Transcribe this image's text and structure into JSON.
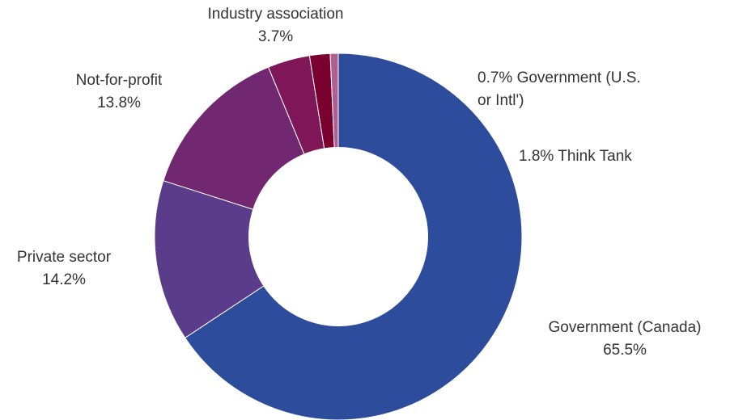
{
  "chart_data": {
    "type": "pie",
    "hole": true,
    "slices": [
      {
        "label": "Government (Canada)",
        "value": 65.5,
        "value_label": "65.5%",
        "color": "#2E4C9C"
      },
      {
        "label": "Private sector",
        "value": 14.2,
        "value_label": "14.2%",
        "color": "#5A3C8A"
      },
      {
        "label": "Not-for-profit",
        "value": 13.8,
        "value_label": "13.8%",
        "color": "#722870"
      },
      {
        "label": "Industry association",
        "value": 3.7,
        "value_label": "3.7%",
        "color": "#7E1658"
      },
      {
        "label": "Think Tank",
        "value": 1.8,
        "value_label": "1.8%",
        "color": "#7A0030"
      },
      {
        "label": "Government (U.S. or Intl')",
        "value": 0.7,
        "value_label": "0.7%",
        "color": "#B0608E"
      }
    ]
  },
  "labels": {
    "government_canada": {
      "name": "Government (Canada)",
      "pct": "65.5%"
    },
    "private_sector": {
      "name": "Private sector",
      "pct": "14.2%"
    },
    "not_for_profit": {
      "name": "Not-for-profit",
      "pct": "13.8%"
    },
    "industry_association": {
      "name": "Industry association",
      "pct": "3.7%"
    },
    "think_tank": {
      "text": "1.8% Think Tank"
    },
    "government_intl": {
      "line1": "0.7% Government (U.S.",
      "line2": "or Intl')"
    }
  }
}
